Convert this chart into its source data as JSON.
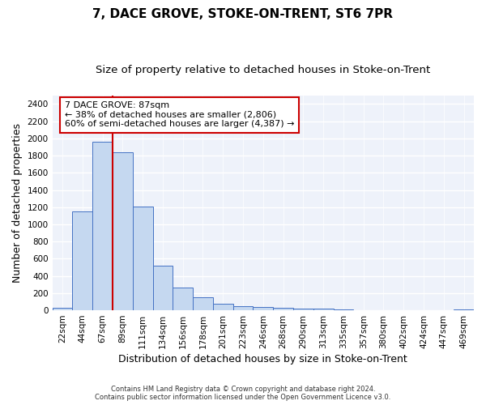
{
  "title": "7, DACE GROVE, STOKE-ON-TRENT, ST6 7PR",
  "subtitle": "Size of property relative to detached houses in Stoke-on-Trent",
  "xlabel": "Distribution of detached houses by size in Stoke-on-Trent",
  "ylabel": "Number of detached properties",
  "categories": [
    "22sqm",
    "44sqm",
    "67sqm",
    "89sqm",
    "111sqm",
    "134sqm",
    "156sqm",
    "178sqm",
    "201sqm",
    "223sqm",
    "246sqm",
    "268sqm",
    "290sqm",
    "313sqm",
    "335sqm",
    "357sqm",
    "380sqm",
    "402sqm",
    "424sqm",
    "447sqm",
    "469sqm"
  ],
  "values": [
    30,
    1150,
    1960,
    1840,
    1210,
    515,
    265,
    155,
    80,
    50,
    40,
    30,
    22,
    20,
    12,
    5,
    0,
    0,
    0,
    0,
    12
  ],
  "bar_color": "#c5d8f0",
  "bar_edge_color": "#4472c4",
  "vline_color": "#cc0000",
  "vline_position": 2.5,
  "annotation_text": "7 DACE GROVE: 87sqm\n← 38% of detached houses are smaller (2,806)\n60% of semi-detached houses are larger (4,387) →",
  "annotation_box_color": "#cc0000",
  "ylim": [
    0,
    2500
  ],
  "yticks": [
    0,
    200,
    400,
    600,
    800,
    1000,
    1200,
    1400,
    1600,
    1800,
    2000,
    2200,
    2400
  ],
  "footer_line1": "Contains HM Land Registry data © Crown copyright and database right 2024.",
  "footer_line2": "Contains public sector information licensed under the Open Government Licence v3.0.",
  "background_color": "#eef2fa",
  "title_fontsize": 11,
  "subtitle_fontsize": 9.5,
  "xlabel_fontsize": 9,
  "ylabel_fontsize": 9,
  "annotation_fontsize": 8,
  "tick_fontsize": 7.5
}
